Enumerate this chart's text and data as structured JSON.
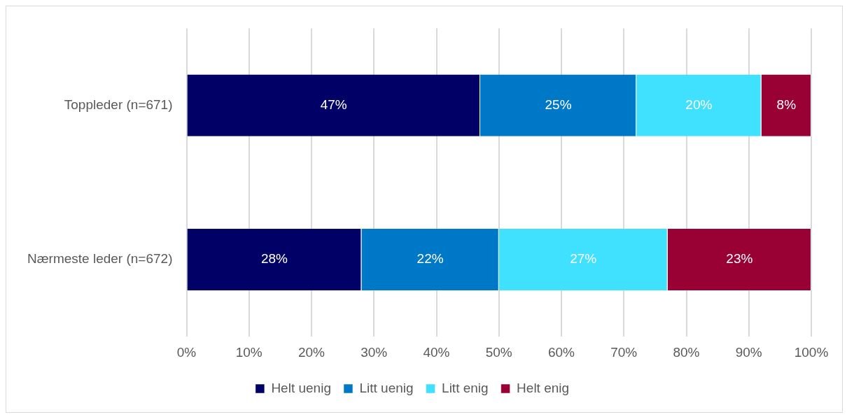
{
  "chart_data": {
    "type": "bar",
    "orientation": "horizontal",
    "stacked": true,
    "categories": [
      "Toppleder (n=671)",
      "Nærmeste leder (n=672)"
    ],
    "series": [
      {
        "name": "Helt uenig",
        "color": "#000066",
        "values": [
          47,
          28
        ],
        "value_labels": [
          "47%",
          "28%"
        ]
      },
      {
        "name": "Litt uenig",
        "color": "#0078c8",
        "values": [
          25,
          22
        ],
        "value_labels": [
          "25%",
          "22%"
        ]
      },
      {
        "name": "Litt enig",
        "color": "#40e0ff",
        "values": [
          20,
          27
        ],
        "value_labels": [
          "20%",
          "27%"
        ]
      },
      {
        "name": "Helt enig",
        "color": "#990033",
        "values": [
          8,
          23
        ],
        "value_labels": [
          "8%",
          "23%"
        ]
      }
    ],
    "xlim": [
      0,
      100
    ],
    "xticks": [
      {
        "value": 0,
        "label": "0%"
      },
      {
        "value": 10,
        "label": "10%"
      },
      {
        "value": 20,
        "label": "20%"
      },
      {
        "value": 30,
        "label": "30%"
      },
      {
        "value": 40,
        "label": "40%"
      },
      {
        "value": 50,
        "label": "50%"
      },
      {
        "value": 60,
        "label": "60%"
      },
      {
        "value": 70,
        "label": "70%"
      },
      {
        "value": 80,
        "label": "80%"
      },
      {
        "value": 90,
        "label": "90%"
      },
      {
        "value": 100,
        "label": "100%"
      }
    ],
    "grid": "x",
    "legend": "bottom"
  }
}
